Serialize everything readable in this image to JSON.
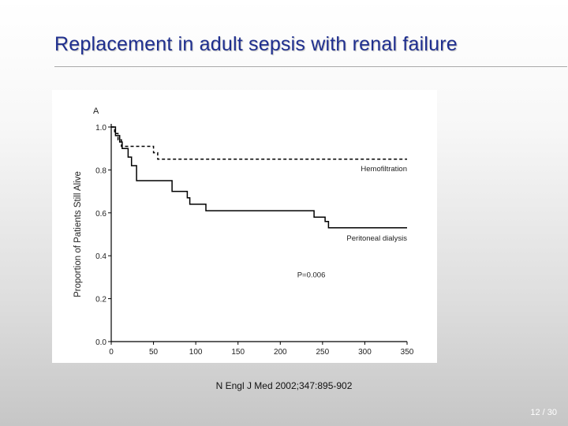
{
  "slide": {
    "title": "Replacement in adult sepsis with renal failure",
    "citation": "N Engl J Med 2002;347:895-902",
    "page_number": "12 / 30"
  },
  "chart_data": {
    "type": "line",
    "panel_label": "A",
    "title": "",
    "xlabel": "",
    "ylabel": "Proportion of Patients Still Alive",
    "xlim": [
      0,
      350
    ],
    "ylim": [
      0.0,
      1.0
    ],
    "x_ticks": [
      "0",
      "50",
      "100",
      "150",
      "200",
      "250",
      "300",
      "350"
    ],
    "y_ticks": [
      "0.0",
      "0.2",
      "0.4",
      "0.6",
      "0.8",
      "1.0"
    ],
    "grid": false,
    "annotation": "P=0.006",
    "series": [
      {
        "name": "Hemofiltration",
        "line_style": "dashed",
        "color": "#000000",
        "points": [
          [
            0,
            1.0
          ],
          [
            4,
            1.0
          ],
          [
            4,
            0.97
          ],
          [
            8,
            0.97
          ],
          [
            8,
            0.94
          ],
          [
            12,
            0.94
          ],
          [
            12,
            0.91
          ],
          [
            50,
            0.91
          ],
          [
            50,
            0.88
          ],
          [
            55,
            0.88
          ],
          [
            55,
            0.85
          ],
          [
            350,
            0.85
          ]
        ]
      },
      {
        "name": "Peritoneal dialysis",
        "line_style": "solid",
        "color": "#000000",
        "points": [
          [
            0,
            1.0
          ],
          [
            5,
            1.0
          ],
          [
            5,
            0.96
          ],
          [
            10,
            0.96
          ],
          [
            10,
            0.93
          ],
          [
            13,
            0.93
          ],
          [
            13,
            0.9
          ],
          [
            20,
            0.9
          ],
          [
            20,
            0.86
          ],
          [
            24,
            0.86
          ],
          [
            24,
            0.82
          ],
          [
            30,
            0.82
          ],
          [
            30,
            0.75
          ],
          [
            72,
            0.75
          ],
          [
            72,
            0.7
          ],
          [
            90,
            0.7
          ],
          [
            90,
            0.67
          ],
          [
            93,
            0.67
          ],
          [
            93,
            0.64
          ],
          [
            112,
            0.64
          ],
          [
            112,
            0.61
          ],
          [
            240,
            0.61
          ],
          [
            240,
            0.58
          ],
          [
            253,
            0.58
          ],
          [
            253,
            0.56
          ],
          [
            257,
            0.56
          ],
          [
            257,
            0.53
          ],
          [
            350,
            0.53
          ]
        ]
      }
    ]
  }
}
